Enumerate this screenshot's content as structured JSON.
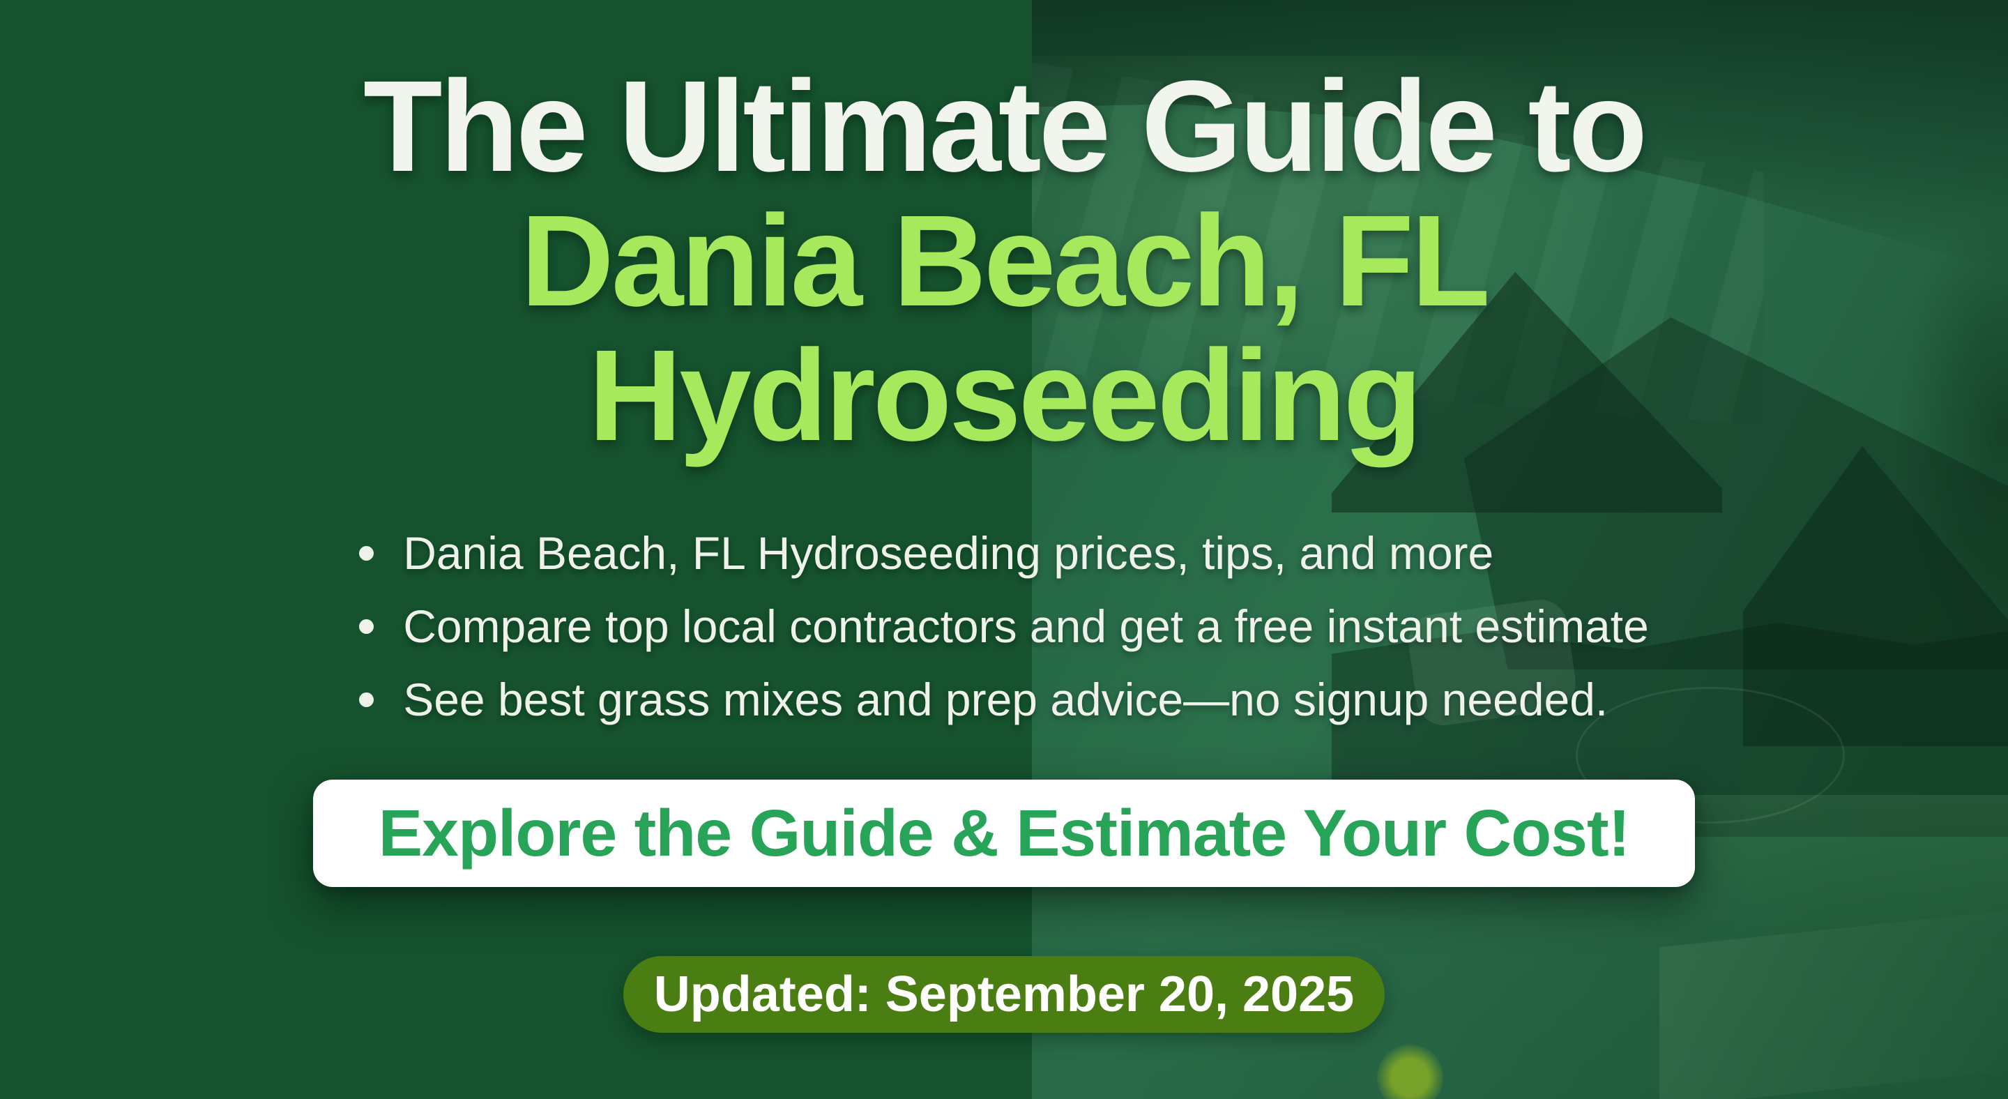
{
  "hero": {
    "title_line1": "The Ultimate Guide to",
    "title_line2": "Dania Beach, FL",
    "title_line3": "Hydroseeding",
    "bullets": [
      "Dania Beach, FL Hydroseeding prices, tips, and more",
      "Compare top local contractors and get a free instant estimate",
      "See best grass mixes and prep advice—no signup needed."
    ],
    "cta_label": "Explore the Guide & Estimate Your Cost!",
    "updated_label": "Updated: September 20, 2025"
  },
  "colors": {
    "background_green": "#15522D",
    "photo_tint_green": "#266946",
    "title_white": "#F2F4EE",
    "title_lime": "#A7E95C",
    "bullet_text": "#EEF2EA",
    "cta_background": "#FFFFFF",
    "cta_text_green": "#27A457",
    "badge_background_olive": "#4A7D12",
    "badge_text": "#FFFFFF"
  }
}
